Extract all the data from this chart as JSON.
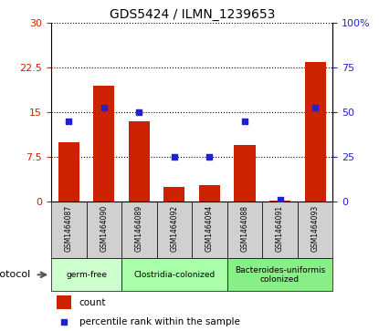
{
  "title": "GDS5424 / ILMN_1239653",
  "samples": [
    "GSM1464087",
    "GSM1464090",
    "GSM1464089",
    "GSM1464092",
    "GSM1464094",
    "GSM1464088",
    "GSM1464091",
    "GSM1464093"
  ],
  "counts": [
    10.0,
    19.5,
    13.5,
    2.5,
    2.8,
    9.5,
    0.15,
    23.5
  ],
  "percentiles": [
    45,
    53,
    50,
    25,
    25,
    45,
    1,
    53
  ],
  "ylim_left": [
    0,
    30
  ],
  "ylim_right": [
    0,
    100
  ],
  "yticks_left": [
    0,
    7.5,
    15,
    22.5,
    30
  ],
  "yticks_right": [
    0,
    25,
    50,
    75,
    100
  ],
  "ytick_labels_left": [
    "0",
    "7.5",
    "15",
    "22.5",
    "30"
  ],
  "ytick_labels_right": [
    "0",
    "25",
    "50",
    "75",
    "100%"
  ],
  "bar_color": "#cc2200",
  "dot_color": "#2222cc",
  "groups": [
    {
      "label": "germ-free",
      "start": 0,
      "end": 2,
      "color": "#ccffcc"
    },
    {
      "label": "Clostridia-colonized",
      "start": 2,
      "end": 5,
      "color": "#aaffaa"
    },
    {
      "label": "Bacteroides-uniformis\ncolonized",
      "start": 5,
      "end": 8,
      "color": "#88ee88"
    }
  ],
  "protocol_label": "protocol",
  "legend_count_label": "count",
  "legend_percentile_label": "percentile rank within the sample",
  "grid_color": "black",
  "background_color": "#ffffff",
  "tick_color_left": "#cc2200",
  "tick_color_right": "#2222cc",
  "sample_box_color": "#d0d0d0"
}
